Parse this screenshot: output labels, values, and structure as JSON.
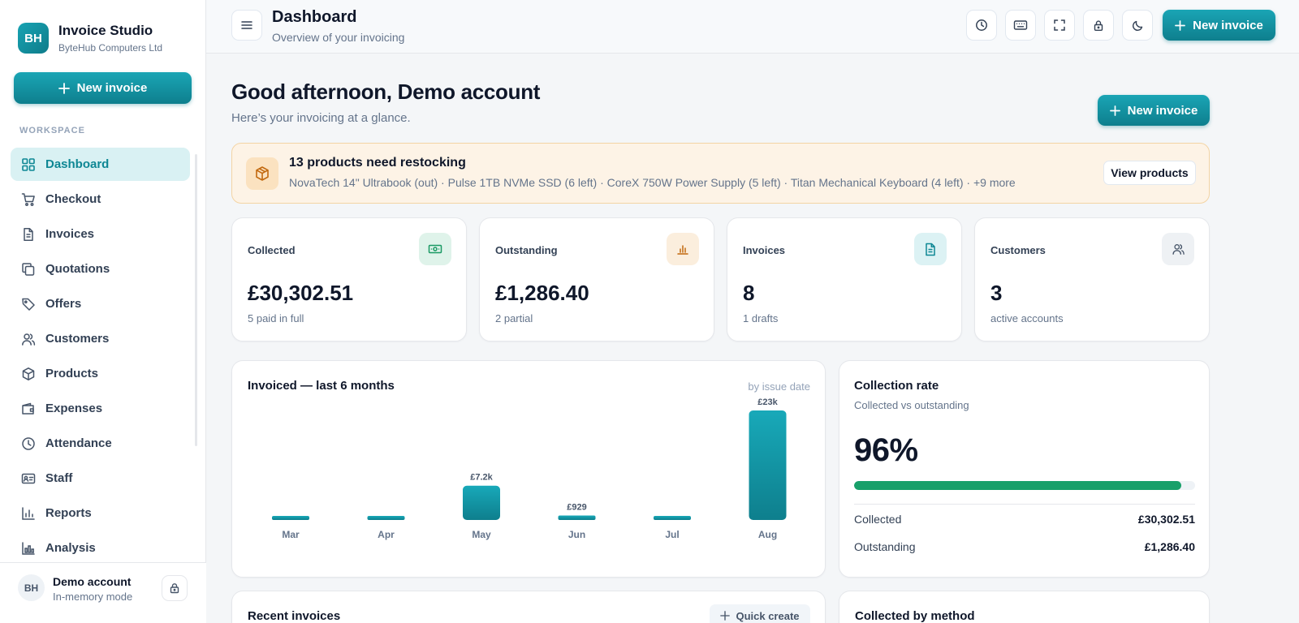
{
  "brand": {
    "initials": "BH",
    "name": "Invoice Studio",
    "company": "ByteHub Computers Ltd"
  },
  "sidebar": {
    "new_invoice_label": "New invoice",
    "section_label": "WORKSPACE",
    "items": [
      {
        "label": "Dashboard",
        "icon": "grid-icon",
        "active": true
      },
      {
        "label": "Checkout",
        "icon": "cart-icon"
      },
      {
        "label": "Invoices",
        "icon": "file-icon"
      },
      {
        "label": "Quotations",
        "icon": "copy-icon"
      },
      {
        "label": "Offers",
        "icon": "tag-icon"
      },
      {
        "label": "Customers",
        "icon": "users-icon"
      },
      {
        "label": "Products",
        "icon": "box-icon"
      },
      {
        "label": "Expenses",
        "icon": "wallet-icon"
      },
      {
        "label": "Attendance",
        "icon": "clock-icon"
      },
      {
        "label": "Staff",
        "icon": "id-card-icon"
      },
      {
        "label": "Reports",
        "icon": "bar-chart-icon"
      },
      {
        "label": "Analysis",
        "icon": "analysis-icon"
      }
    ]
  },
  "account": {
    "initials": "BH",
    "name": "Demo account",
    "mode": "In-memory mode"
  },
  "header": {
    "title": "Dashboard",
    "subtitle": "Overview of your invoicing",
    "new_invoice_label": "New invoice",
    "tools": [
      "history-icon",
      "keyboard-icon",
      "fullscreen-icon",
      "lock-icon",
      "moon-icon"
    ]
  },
  "greeting": {
    "title": "Good afternoon, Demo account",
    "subtitle": "Here’s your invoicing at a glance.",
    "new_invoice_label": "New invoice"
  },
  "restock_alert": {
    "title": "13 products need restocking",
    "detail": "NovaTech 14\" Ultrabook (out) · Pulse 1TB NVMe SSD (6 left) · CoreX 750W Power Supply (5 left) · Titan Mechanical Keyboard (4 left) · +9 more",
    "button_label": "View products"
  },
  "stats": [
    {
      "label": "Collected",
      "value": "£30,302.51",
      "foot": "5 paid in full",
      "icon": "cash-icon",
      "icon_bg": "#dff3ea",
      "icon_color": "#1a9a64"
    },
    {
      "label": "Outstanding",
      "value": "£1,286.40",
      "foot": "2 partial",
      "icon": "bar-chart-icon",
      "icon_bg": "#fbeedd",
      "icon_color": "#c2680e"
    },
    {
      "label": "Invoices",
      "value": "8",
      "foot": "1 drafts",
      "icon": "document-icon",
      "icon_bg": "#dcf2f4",
      "icon_color": "#0e8794"
    },
    {
      "label": "Customers",
      "value": "3",
      "foot": "active accounts",
      "icon": "users-icon",
      "icon_bg": "#eef1f4",
      "icon_color": "#475569"
    }
  ],
  "chart_card": {
    "title": "Invoiced — last 6 months",
    "note": "by issue date"
  },
  "chart_data": {
    "type": "bar",
    "categories": [
      "Mar",
      "Apr",
      "May",
      "Jun",
      "Jul",
      "Aug"
    ],
    "values": [
      0,
      0,
      7200,
      929,
      0,
      23000
    ],
    "value_labels": [
      "",
      "",
      "£7.2k",
      "£929",
      "",
      "£23k"
    ],
    "title": "Invoiced — last 6 months",
    "xlabel": "",
    "ylabel": "",
    "ylim": [
      0,
      23000
    ],
    "bar_color": "#129aa9"
  },
  "collection_rate": {
    "title": "Collection rate",
    "subtitle": "Collected vs outstanding",
    "percent_label": "96%",
    "fraction": 0.96,
    "rows": [
      {
        "label": "Collected",
        "value": "£30,302.51"
      },
      {
        "label": "Outstanding",
        "value": "£1,286.40"
      }
    ]
  },
  "recent_invoices": {
    "title": "Recent invoices",
    "quick_create_label": "Quick create"
  },
  "collected_by_method": {
    "title": "Collected by method"
  }
}
